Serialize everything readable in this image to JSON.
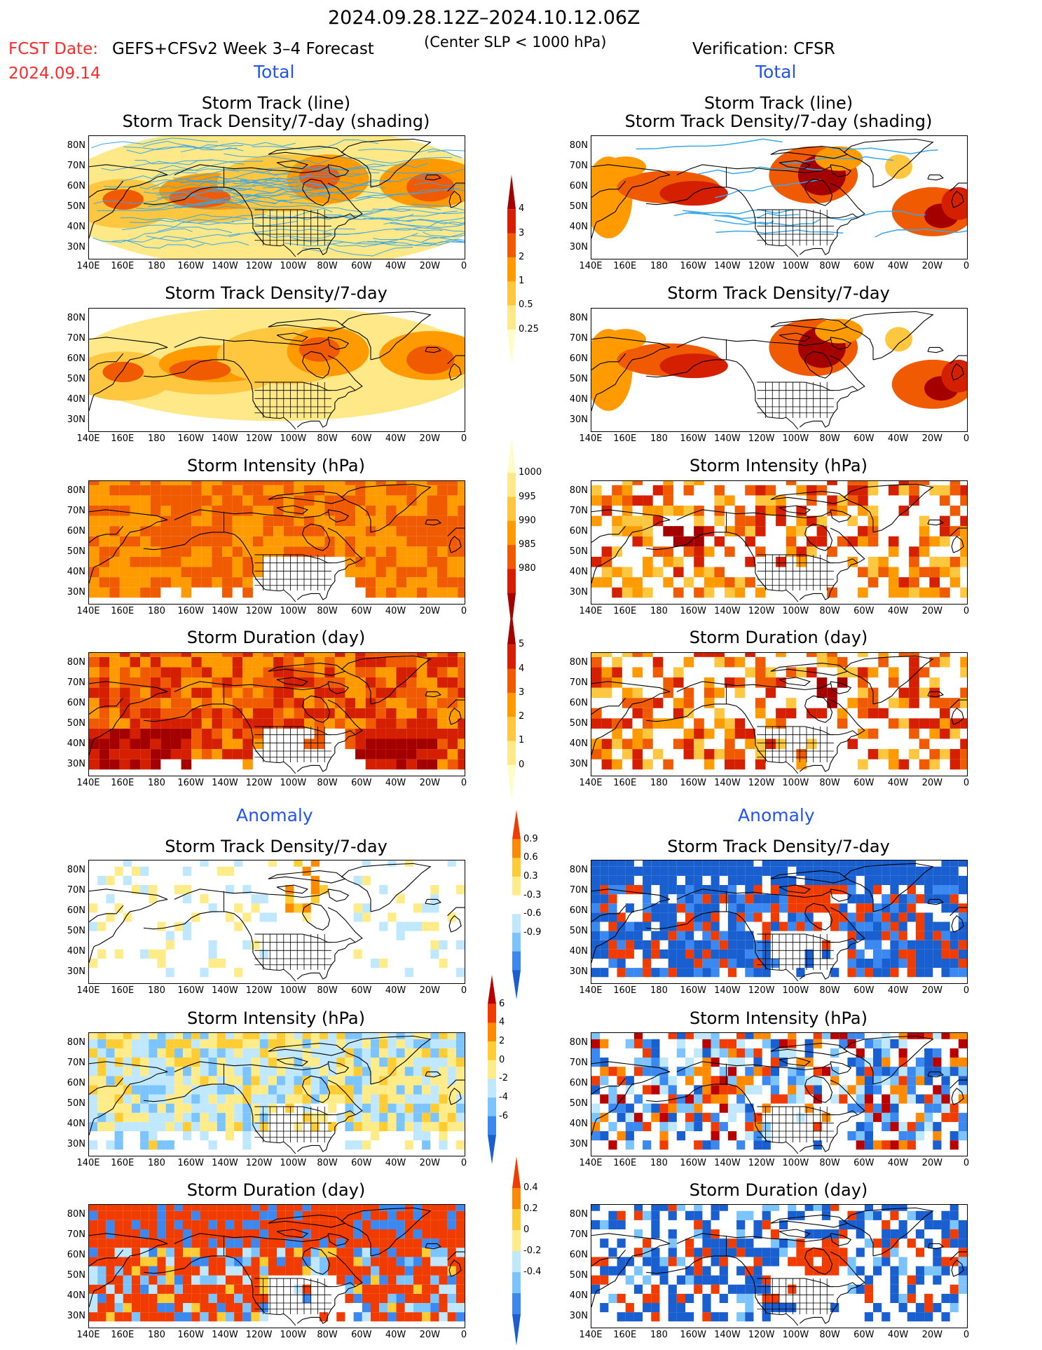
{
  "header": {
    "valid_period": "2024.09.28.12Z–2024.10.12.06Z",
    "fcst_date_label": "FCST Date:",
    "fcst_date_value": "2024.09.14",
    "forecast_name": "GEFS+CFSv2 Week 3–4 Forecast",
    "criterion": "(Center SLP < 1000 hPa)",
    "verification": "Verification: CFSR"
  },
  "section_labels": {
    "total": "Total",
    "anomaly": "Anomaly"
  },
  "lat_labels": [
    "80N",
    "70N",
    "60N",
    "50N",
    "40N",
    "30N"
  ],
  "lon_labels": [
    "140E",
    "160E",
    "180",
    "160W",
    "140W",
    "120W",
    "100W",
    "80W",
    "60W",
    "40W",
    "20W",
    "0"
  ],
  "rows": [
    {
      "title": "Storm Track (line)",
      "title2": "Storm Track Density/7-day (shading)"
    },
    {
      "title": "Storm Track Density/7-day"
    },
    {
      "title": "Storm Intensity (hPa)"
    },
    {
      "title": "Storm Duration (day)"
    },
    {
      "title": "Storm Track Density/7-day"
    },
    {
      "title": "Storm Intensity (hPa)"
    },
    {
      "title": "Storm Duration (day)"
    }
  ],
  "colorbars": [
    {
      "name": "total-density-colorbar",
      "labels": [
        "4",
        "3",
        "2",
        "1",
        "0.5",
        "0.25"
      ],
      "colors": [
        "#a50000",
        "#d42000",
        "#f05a00",
        "#ff9a00",
        "#ffc640",
        "#ffe888",
        "#fffcc8"
      ]
    },
    {
      "name": "total-intensity-colorbar",
      "labels": [
        "1000",
        "995",
        "990",
        "985",
        "980"
      ],
      "colors": [
        "#fffcc8",
        "#ffe888",
        "#ffc640",
        "#ff9a00",
        "#f05a00",
        "#d42000",
        "#a50000"
      ]
    },
    {
      "name": "total-duration-colorbar",
      "labels": [
        "5",
        "4",
        "3",
        "2",
        "1",
        "0"
      ],
      "colors": [
        "#a50000",
        "#d42000",
        "#f05a00",
        "#ff9a00",
        "#ffc640",
        "#ffe888",
        "#fffcc8"
      ]
    },
    {
      "name": "anomaly-density-colorbar",
      "labels": [
        "0.9",
        "0.6",
        "0.3",
        "-0.3",
        "-0.6",
        "-0.9"
      ],
      "colors": [
        "#f03c00",
        "#ff8a00",
        "#ffcc33",
        "#ffec88",
        "#ffffff",
        "#bfe8ff",
        "#7cc4ff",
        "#3a88f0",
        "#1a5fd0"
      ]
    },
    {
      "name": "anomaly-intensity-colorbar",
      "labels": [
        "6",
        "4",
        "2",
        "0",
        "-2",
        "-4",
        "-6"
      ],
      "colors": [
        "#b80000",
        "#f03c00",
        "#ff8a00",
        "#ffcc33",
        "#ffec88",
        "#bfe8ff",
        "#7cc4ff",
        "#3a88f0",
        "#1a5fd0"
      ]
    },
    {
      "name": "anomaly-duration-colorbar",
      "labels": [
        "0.4",
        "0.2",
        "0",
        "-0.2",
        "-0.4"
      ],
      "colors": [
        "#f03c00",
        "#ff8a00",
        "#ffcc33",
        "#ffec88",
        "#bfe8ff",
        "#7cc4ff",
        "#3a88f0",
        "#1a5fd0"
      ]
    }
  ],
  "colors": {
    "track_line": "#3aa8e8",
    "title_red": "#ff2a2a",
    "section_blue": "#2255ee"
  }
}
